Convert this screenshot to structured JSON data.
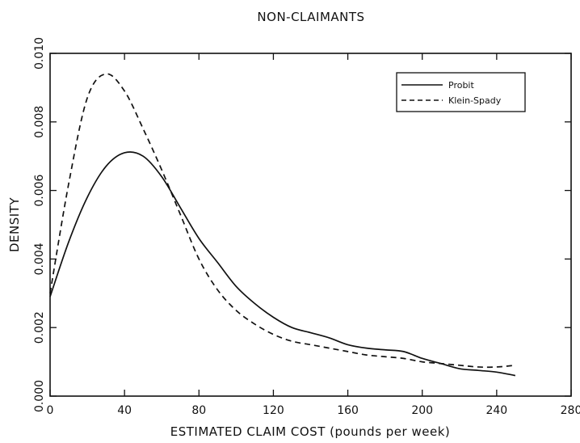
{
  "chart_data": {
    "type": "line",
    "title": "NON-CLAIMANTS",
    "xlabel": "ESTIMATED CLAIM COST (pounds per week)",
    "ylabel": "DENSITY",
    "xlim": [
      0,
      280
    ],
    "ylim": [
      0,
      0.01
    ],
    "xticks": [
      0,
      40,
      80,
      120,
      160,
      200,
      240,
      280
    ],
    "xtick_labels": [
      "0",
      "40",
      "80",
      "120",
      "160",
      "200",
      "240",
      "280"
    ],
    "yticks": [
      0,
      0.002,
      0.004,
      0.006,
      0.008,
      0.01
    ],
    "ytick_labels": [
      "0.000",
      "0.002",
      "0.004",
      "0.006",
      "0.008",
      "0.010"
    ],
    "grid": false,
    "legend_position": "top-right",
    "series": [
      {
        "name": "Probit",
        "style": "solid",
        "color": "#111111",
        "x": [
          0,
          10,
          20,
          30,
          40,
          50,
          60,
          70,
          80,
          90,
          100,
          110,
          120,
          130,
          140,
          150,
          160,
          170,
          180,
          190,
          200,
          210,
          220,
          230,
          240,
          250
        ],
        "y": [
          0.0029,
          0.0045,
          0.0058,
          0.0067,
          0.0071,
          0.007,
          0.0064,
          0.0055,
          0.0046,
          0.0039,
          0.0032,
          0.0027,
          0.0023,
          0.002,
          0.00185,
          0.0017,
          0.0015,
          0.0014,
          0.00135,
          0.0013,
          0.0011,
          0.00095,
          0.0008,
          0.00075,
          0.0007,
          0.0006
        ]
      },
      {
        "name": "Klein-Spady",
        "style": "dashed",
        "color": "#111111",
        "x": [
          0,
          10,
          20,
          30,
          40,
          50,
          60,
          70,
          80,
          90,
          100,
          110,
          120,
          130,
          140,
          150,
          160,
          170,
          180,
          190,
          200,
          210,
          220,
          230,
          240,
          250
        ],
        "y": [
          0.003,
          0.0062,
          0.0087,
          0.0094,
          0.0089,
          0.0078,
          0.0066,
          0.0053,
          0.004,
          0.0031,
          0.0025,
          0.0021,
          0.0018,
          0.0016,
          0.0015,
          0.0014,
          0.0013,
          0.0012,
          0.00115,
          0.0011,
          0.001,
          0.00095,
          0.0009,
          0.00085,
          0.00085,
          0.0009
        ]
      }
    ]
  }
}
